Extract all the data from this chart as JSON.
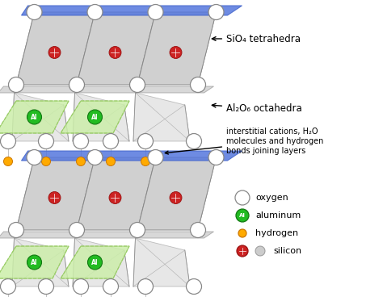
{
  "fig_width": 4.74,
  "fig_height": 3.68,
  "dpi": 100,
  "bg_color": "#ffffff",
  "tetra_color": "#d0d0d0",
  "tetra_edge": "#888888",
  "blue_color": "#5577dd",
  "green_color": "#cceeaa",
  "green_edge": "#99cc66",
  "gray_band": "#cccccc",
  "oxygen_color": "#ffffff",
  "oxygen_edge": "#888888",
  "al_color": "#22bb22",
  "al_edge": "#117711",
  "si_color": "#cc2222",
  "si_edge": "#991111",
  "h_color": "#ffaa00",
  "h_edge": "#cc7700",
  "ann1_text": "SiO₄ tetrahedra",
  "ann2_text": "Al₂O₆ octahedra",
  "ann3_text": "interstitial cations, H₂O\nmolecules and hydrogen\nbonds joining layers",
  "leg_labels": [
    "oxygen",
    "aluminum",
    "hydrogen",
    "silicon"
  ],
  "leg_colors": [
    "#ffffff",
    "#22bb22",
    "#ffaa00",
    "#cc2222"
  ],
  "leg_edges": [
    "#888888",
    "#117711",
    "#cc7700",
    "#991111"
  ]
}
